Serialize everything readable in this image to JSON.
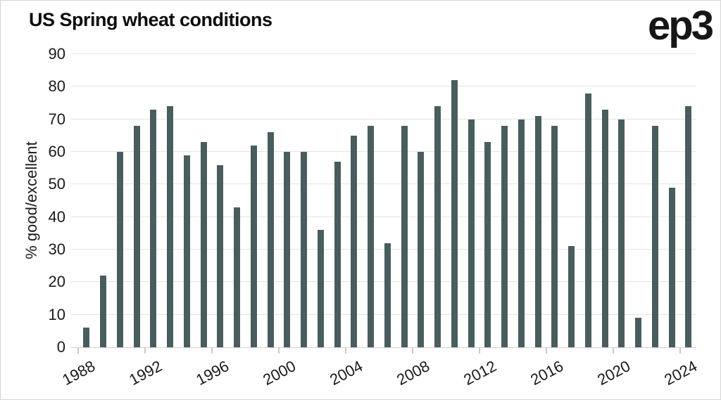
{
  "header": {
    "title": "US Spring wheat conditions",
    "logo_text": "ep3"
  },
  "chart_data": {
    "type": "bar",
    "title": "US Spring wheat conditions",
    "xlabel": "",
    "ylabel": "% good/excellent",
    "ylim": [
      0,
      90
    ],
    "y_ticks": [
      0,
      10,
      20,
      30,
      40,
      50,
      60,
      70,
      80,
      90
    ],
    "x_tick_labels": [
      "1988",
      "1992",
      "1996",
      "2000",
      "2004",
      "2008",
      "2012",
      "2016",
      "2020",
      "2024"
    ],
    "grid": "horizontal",
    "legend_position": "none",
    "bar_color": "#495d5e",
    "gridline_color": "#e4e4e4",
    "categories": [
      1988,
      1989,
      1990,
      1991,
      1992,
      1993,
      1994,
      1995,
      1996,
      1997,
      1998,
      1999,
      2000,
      2001,
      2002,
      2003,
      2004,
      2005,
      2006,
      2007,
      2008,
      2009,
      2010,
      2011,
      2012,
      2013,
      2014,
      2015,
      2016,
      2017,
      2018,
      2019,
      2020,
      2021,
      2022,
      2023,
      2024
    ],
    "values": [
      6,
      22,
      60,
      68,
      73,
      74,
      59,
      63,
      56,
      43,
      62,
      66,
      60,
      60,
      36,
      57,
      65,
      68,
      32,
      68,
      60,
      74,
      82,
      70,
      63,
      68,
      70,
      71,
      68,
      31,
      78,
      73,
      70,
      9,
      68,
      49,
      74
    ]
  }
}
